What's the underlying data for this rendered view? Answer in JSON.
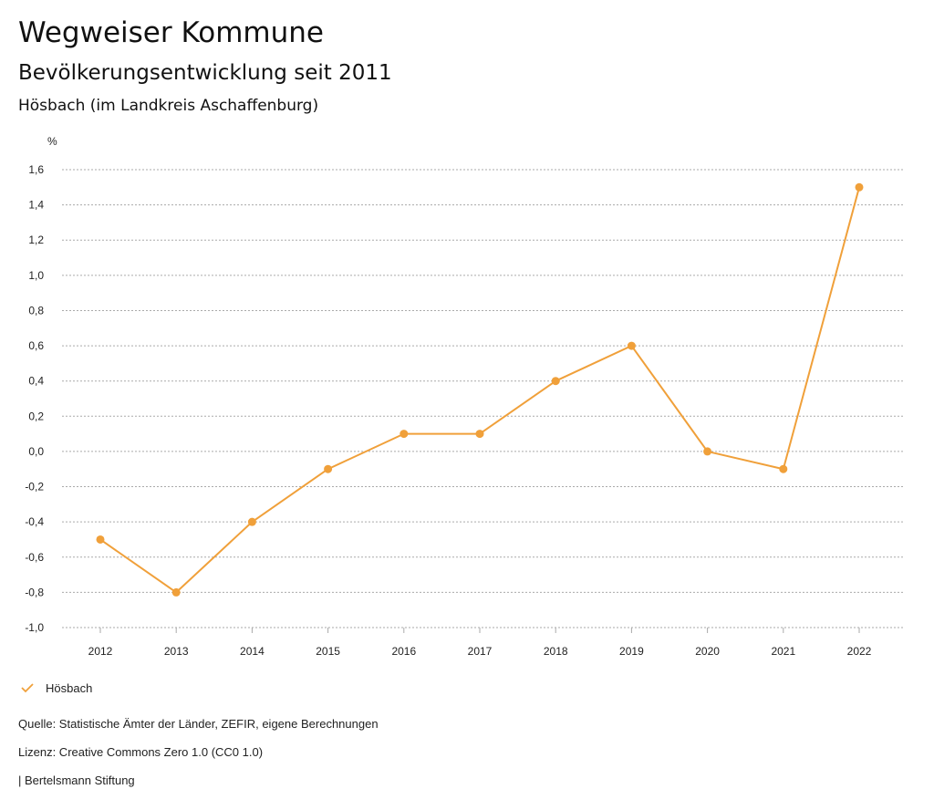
{
  "header": {
    "title": "Wegweiser Kommune",
    "subtitle": "Bevölkerungsentwicklung seit 2011",
    "region": "Hösbach (im Landkreis Aschaffenburg)"
  },
  "legend": {
    "label": "Hösbach"
  },
  "footer": {
    "source": "Quelle: Statistische Ämter der Länder, ZEFIR, eigene Berechnungen",
    "license": "Lizenz: Creative Commons Zero 1.0 (CC0 1.0)",
    "publisher": "| Bertelsmann Stiftung"
  },
  "colors": {
    "series": "#f0a03a",
    "grid": "#aaaaaa",
    "text": "#222222"
  },
  "chart_data": {
    "type": "line",
    "title": "Bevölkerungsentwicklung seit 2011",
    "ylabel": "%",
    "xlabel": "",
    "ylim": [
      -1.0,
      1.6
    ],
    "yticks": [
      -1.0,
      -0.8,
      -0.6,
      -0.4,
      -0.2,
      0.0,
      0.2,
      0.4,
      0.6,
      0.8,
      1.0,
      1.2,
      1.4,
      1.6
    ],
    "ytick_labels": [
      "-1,0",
      "-0,8",
      "-0,6",
      "-0,4",
      "-0,2",
      "0,0",
      "0,2",
      "0,4",
      "0,6",
      "0,8",
      "1,0",
      "1,2",
      "1,4",
      "1,6"
    ],
    "categories": [
      "2012",
      "2013",
      "2014",
      "2015",
      "2016",
      "2017",
      "2018",
      "2019",
      "2020",
      "2021",
      "2022"
    ],
    "series": [
      {
        "name": "Hösbach",
        "values": [
          -0.5,
          -0.8,
          -0.4,
          -0.1,
          0.1,
          0.1,
          0.4,
          0.6,
          0.0,
          -0.1,
          1.5
        ]
      }
    ],
    "grid": true,
    "legend_position": "bottom-left"
  }
}
